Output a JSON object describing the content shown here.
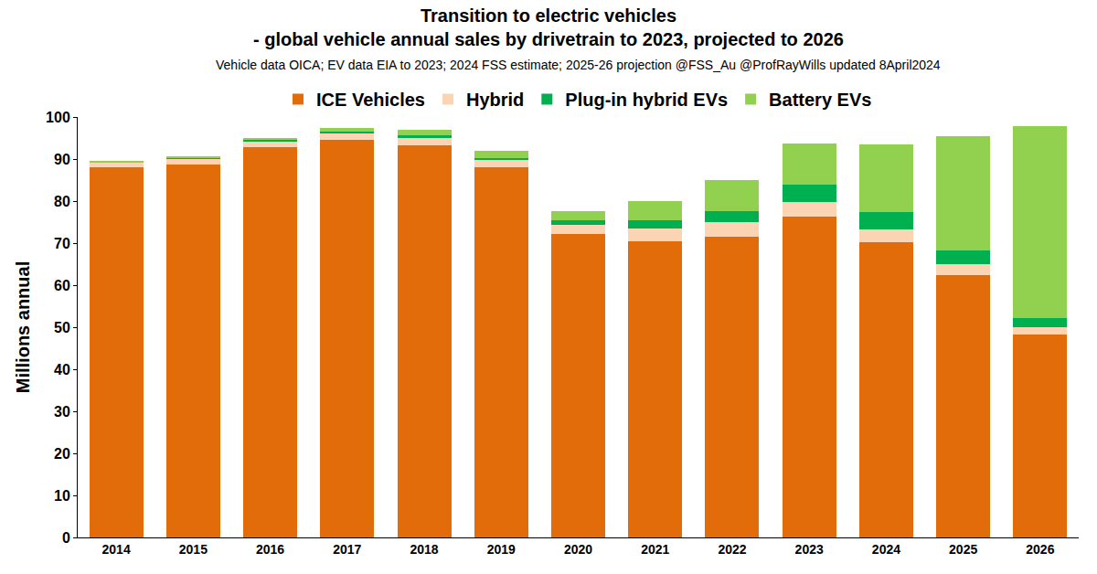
{
  "chart_data": {
    "type": "bar",
    "title": [
      "Transition to electric vehicles",
      "- global vehicle annual sales by drivetrain to 2023, projected to 2026"
    ],
    "subtitle": "Vehicle data OICA; EV data EIA to 2023; 2024 FSS estimate; 2025-26 projection @FSS_Au @ProfRayWills updated 8April2024",
    "y_label": "Millions annual",
    "categories": [
      "2014",
      "2015",
      "2016",
      "2017",
      "2018",
      "2019",
      "2020",
      "2021",
      "2022",
      "2023",
      "2024",
      "2025",
      "2026"
    ],
    "series": [
      {
        "name": "ICE Vehicles",
        "color": "#e36c0a",
        "values": [
          88.0,
          88.8,
          92.8,
          94.6,
          93.2,
          88.0,
          72.2,
          70.5,
          71.6,
          76.3,
          70.2,
          62.5,
          48.3
        ]
      },
      {
        "name": "Hybrid",
        "color": "#fbd4b4",
        "values": [
          1.2,
          1.3,
          1.4,
          1.5,
          1.8,
          1.8,
          2.2,
          3.0,
          3.3,
          3.5,
          3.0,
          2.4,
          1.6
        ]
      },
      {
        "name": "Plug-in hybrid EVs",
        "color": "#00b050",
        "values": [
          0.1,
          0.2,
          0.3,
          0.4,
          0.6,
          0.5,
          1.0,
          1.9,
          2.8,
          4.2,
          4.2,
          3.3,
          2.3
        ]
      },
      {
        "name": "Battery EVs",
        "color": "#92d050",
        "values": [
          0.2,
          0.3,
          0.5,
          0.8,
          1.3,
          1.7,
          2.2,
          4.6,
          7.3,
          9.6,
          16.1,
          27.2,
          45.6
        ]
      }
    ],
    "stacked": true,
    "ylim": [
      0,
      100
    ],
    "yticks": [
      0,
      10,
      20,
      30,
      40,
      50,
      60,
      70,
      80,
      90,
      100
    ],
    "grid": false,
    "legend": "top"
  }
}
